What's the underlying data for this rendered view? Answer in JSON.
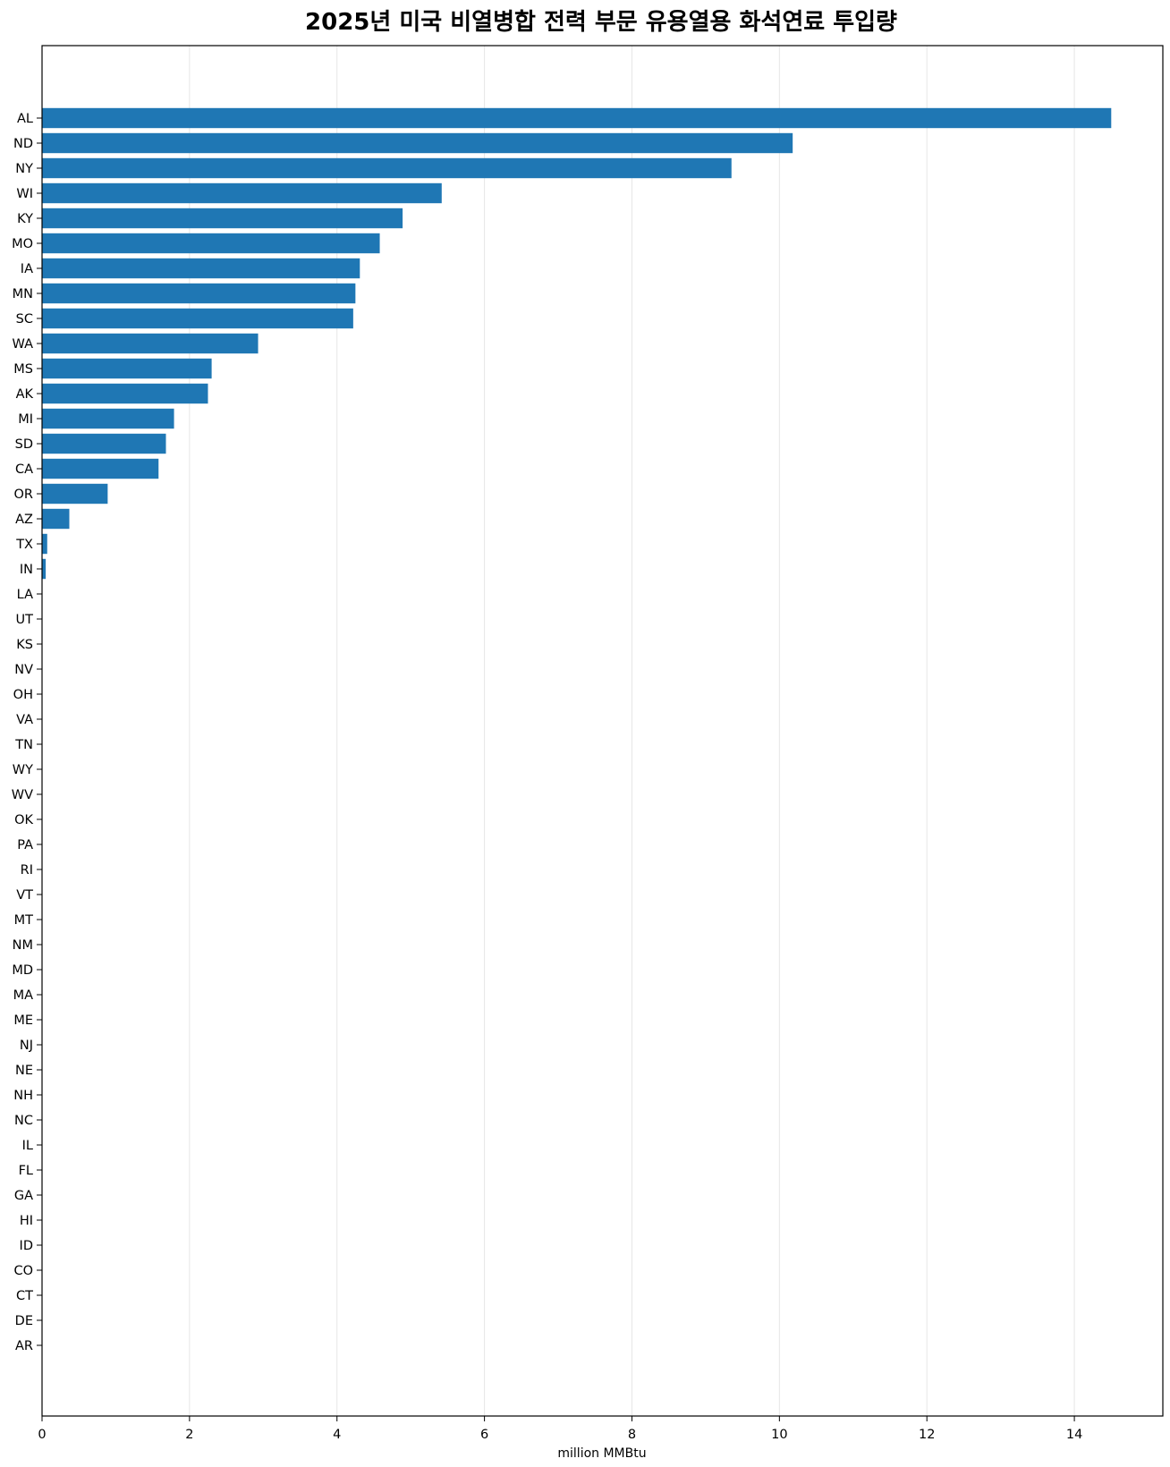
{
  "chart_data": {
    "type": "bar",
    "orientation": "horizontal",
    "title": "2025년 미국 비열병합 전력 부문 유용열용 화석연료 투입량",
    "xlabel": "million MMBtu",
    "ylabel": "",
    "xlim": [
      0,
      15.2
    ],
    "xticks": [
      0,
      2,
      4,
      6,
      8,
      10,
      12,
      14
    ],
    "grid": "vertical",
    "bar_color": "#1f77b4",
    "categories": [
      "AL",
      "ND",
      "NY",
      "WI",
      "KY",
      "MO",
      "IA",
      "MN",
      "SC",
      "WA",
      "MS",
      "AK",
      "MI",
      "SD",
      "CA",
      "OR",
      "AZ",
      "TX",
      "IN",
      "LA",
      "UT",
      "KS",
      "NV",
      "OH",
      "VA",
      "TN",
      "WY",
      "WV",
      "OK",
      "PA",
      "RI",
      "VT",
      "MT",
      "NM",
      "MD",
      "MA",
      "ME",
      "NJ",
      "NE",
      "NH",
      "NC",
      "IL",
      "FL",
      "GA",
      "HI",
      "ID",
      "CO",
      "CT",
      "DE",
      "AR"
    ],
    "values": [
      14.5,
      10.18,
      9.35,
      5.42,
      4.89,
      4.58,
      4.31,
      4.25,
      4.22,
      2.93,
      2.3,
      2.25,
      1.79,
      1.68,
      1.58,
      0.89,
      0.37,
      0.07,
      0.05,
      0,
      0,
      0,
      0,
      0,
      0,
      0,
      0,
      0,
      0,
      0,
      0,
      0,
      0,
      0,
      0,
      0,
      0,
      0,
      0,
      0,
      0,
      0,
      0,
      0,
      0,
      0,
      0,
      0,
      0,
      0
    ]
  }
}
